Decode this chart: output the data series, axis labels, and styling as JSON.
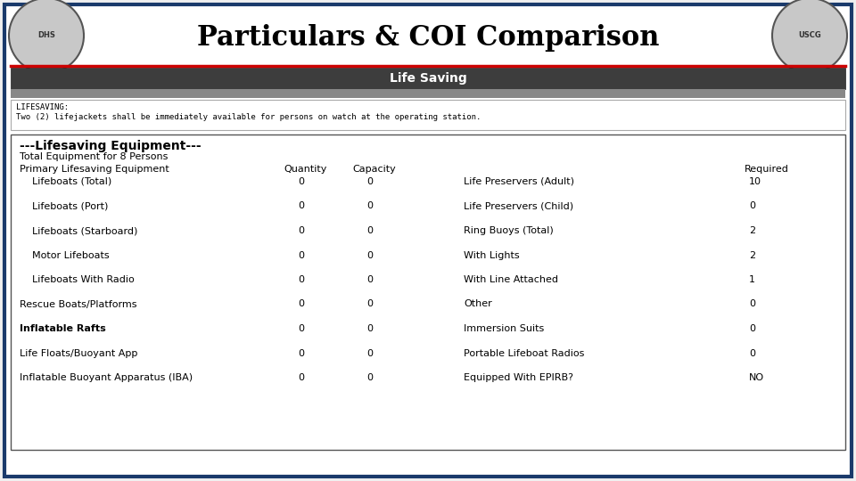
{
  "title": "Particulars & COI Comparison",
  "title_fontsize": 22,
  "bg_color": "#f0f0f0",
  "slide_bg": "#f0f0f0",
  "inner_bg": "#ffffff",
  "border_color": "#1a3a6b",
  "red_line_color": "#cc0000",
  "header_bar_color": "#3d3d3d",
  "header_text": "Life Saving",
  "lifesaving_text_line1": "LIFESAVING:",
  "lifesaving_text_line2": "Two (2) lifejackets shall be immediately available for persons on watch at the operating station.",
  "equipment_header": "---Lifesaving Equipment---",
  "total_equipment": "Total Equipment for 8 Persons",
  "rows": [
    {
      "label": "    Lifeboats (Total)",
      "qty": "0",
      "cap": "0",
      "right_label": "Life Preservers (Adult)",
      "required": "10",
      "bold": false
    },
    {
      "label": "    Lifeboats (Port)",
      "qty": "0",
      "cap": "0",
      "right_label": "Life Preservers (Child)",
      "required": "0",
      "bold": false
    },
    {
      "label": "    Lifeboats (Starboard)",
      "qty": "0",
      "cap": "0",
      "right_label": "Ring Buoys (Total)",
      "required": "2",
      "bold": false
    },
    {
      "label": "    Motor Lifeboats",
      "qty": "0",
      "cap": "0",
      "right_label": "With Lights",
      "required": "2",
      "bold": false
    },
    {
      "label": "    Lifeboats With Radio",
      "qty": "0",
      "cap": "0",
      "right_label": "With Line Attached",
      "required": "1",
      "bold": false
    },
    {
      "label": "Rescue Boats/Platforms",
      "qty": "0",
      "cap": "0",
      "right_label": "Other",
      "required": "0",
      "bold": false
    },
    {
      "label": "Inflatable Rafts",
      "qty": "0",
      "cap": "0",
      "right_label": "Immersion Suits",
      "required": "0",
      "bold": true
    },
    {
      "label": "Life Floats/Buoyant App",
      "qty": "0",
      "cap": "0",
      "right_label": "Portable Lifeboat Radios",
      "required": "0",
      "bold": false
    },
    {
      "label": "Inflatable Buoyant Apparatus (IBA)",
      "qty": "0",
      "cap": "0",
      "right_label": "Equipped With EPIRB?",
      "required": "NO",
      "bold": false
    }
  ]
}
